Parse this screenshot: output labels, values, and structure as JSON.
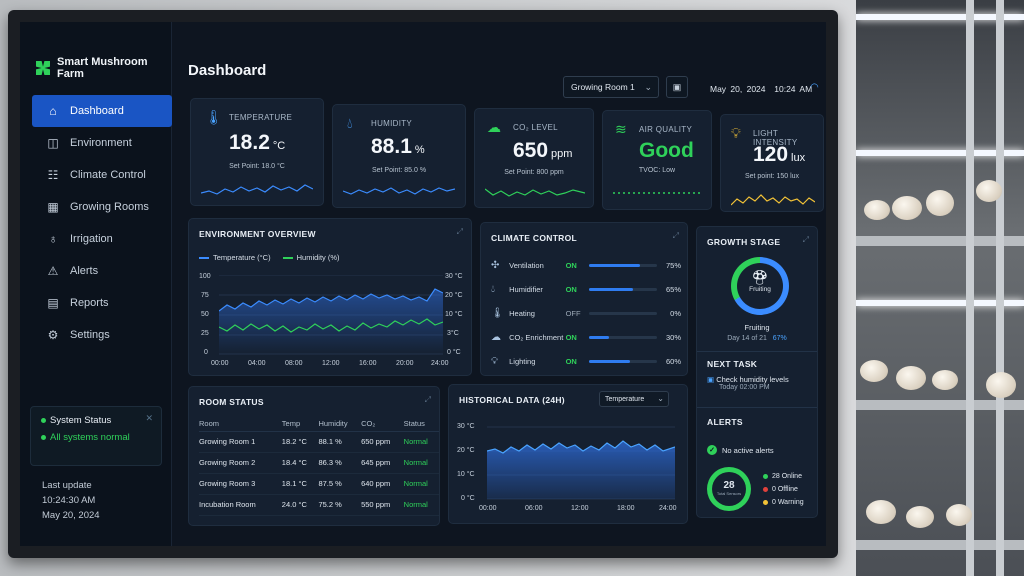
{
  "brand": {
    "name": "Smart Mushroom Farm"
  },
  "header": {
    "title": "Dashboard",
    "room_select": "Growing Room 1",
    "date": "May 20, 2024",
    "time": "10:24 AM"
  },
  "nav": [
    {
      "label": "Dashboard",
      "icon": "home-icon"
    },
    {
      "label": "Environment",
      "icon": "environment-icon"
    },
    {
      "label": "Climate Control",
      "icon": "sliders-icon"
    },
    {
      "label": "Growing Rooms",
      "icon": "building-icon"
    },
    {
      "label": "Irrigation",
      "icon": "droplet-icon"
    },
    {
      "label": "Alerts",
      "icon": "warning-icon"
    },
    {
      "label": "Reports",
      "icon": "report-icon"
    },
    {
      "label": "Settings",
      "icon": "gear-icon"
    }
  ],
  "system_status": {
    "title": "System Status",
    "message": "All systems normal"
  },
  "last_update": {
    "label": "Last update",
    "time": "10:24:30 AM",
    "date": "May 20, 2024"
  },
  "metrics": {
    "temperature": {
      "label": "TEMPERATURE",
      "value": "18.2",
      "unit": "°C",
      "setpoint": "Set Point: 18.0 °C"
    },
    "humidity": {
      "label": "HUMIDITY",
      "value": "88.1",
      "unit": "%",
      "setpoint": "Set Point: 85.0 %"
    },
    "co2": {
      "label": "CO₂ LEVEL",
      "value": "650",
      "unit": "ppm",
      "setpoint": "Set Point: 800 ppm"
    },
    "air": {
      "label": "AIR QUALITY",
      "value": "Good",
      "sub": "TVOC: Low"
    },
    "light": {
      "label": "LIGHT INTENSITY",
      "value": "120",
      "unit": "lux",
      "setpoint": "Set point: 150 lux"
    }
  },
  "environment_overview": {
    "title": "ENVIRONMENT OVERVIEW",
    "legend": [
      "Temperature (°C)",
      "Humidity (%)"
    ],
    "colors": {
      "temperature": "#3b8cff",
      "humidity": "#2fd15a"
    },
    "y_left": [
      "100",
      "75",
      "50",
      "25",
      "0"
    ],
    "y_right": [
      "30 °C",
      "20 °C",
      "10 °C",
      "3°C",
      "0 °C"
    ],
    "x": [
      "00:00",
      "04:00",
      "08:00",
      "12:00",
      "16:00",
      "20:00",
      "24:00"
    ]
  },
  "climate_control": {
    "title": "CLIMATE CONTROL",
    "rows": [
      {
        "name": "Ventilation",
        "state": "ON",
        "percent": "75%",
        "level": 0.75,
        "icon": "fan-icon"
      },
      {
        "name": "Humidifier",
        "state": "ON",
        "percent": "65%",
        "level": 0.65,
        "icon": "droplet-icon"
      },
      {
        "name": "Heating",
        "state": "OFF",
        "percent": "0%",
        "level": 0,
        "icon": "thermometer-icon"
      },
      {
        "name": "CO₂ Enrichment",
        "state": "ON",
        "percent": "30%",
        "level": 0.3,
        "icon": "cloud-icon"
      },
      {
        "name": "Lighting",
        "state": "ON",
        "percent": "60%",
        "level": 0.6,
        "icon": "bulb-icon"
      }
    ]
  },
  "growth_stage": {
    "title": "GROWTH STAGE",
    "stage": "Fruiting",
    "label": "Fruiting",
    "day": "Day 14 of 21",
    "percent": "67%",
    "progress": 0.67
  },
  "next_task": {
    "title": "NEXT TASK",
    "task": "Check humidity levels",
    "when": "Today 02:00 PM"
  },
  "alerts": {
    "title": "ALERTS",
    "message": "No active alerts"
  },
  "devices": {
    "total": "28",
    "total_label": "Total Sensors",
    "online": "28 Online",
    "offline": "0 Offline",
    "warning": "0 Warning"
  },
  "room_status": {
    "title": "ROOM STATUS",
    "headers": [
      "Room",
      "Temp",
      "Humidity",
      "CO₂",
      "Status"
    ],
    "rows": [
      [
        "Growing Room 1",
        "18.2 °C",
        "88.1 %",
        "650 ppm",
        "Normal"
      ],
      [
        "Growing Room 2",
        "18.4 °C",
        "86.3 %",
        "645 ppm",
        "Normal"
      ],
      [
        "Growing Room 3",
        "18.1 °C",
        "87.5 %",
        "640 ppm",
        "Normal"
      ],
      [
        "Incubation Room",
        "24.0 °C",
        "75.2 %",
        "550 ppm",
        "Normal"
      ]
    ]
  },
  "historical": {
    "title": "HISTORICAL DATA (24H)",
    "select": "Temperature",
    "y": [
      "30 °C",
      "20 °C",
      "10 °C",
      "0 °C"
    ],
    "x": [
      "00:00",
      "06:00",
      "12:00",
      "18:00",
      "24:00"
    ]
  }
}
